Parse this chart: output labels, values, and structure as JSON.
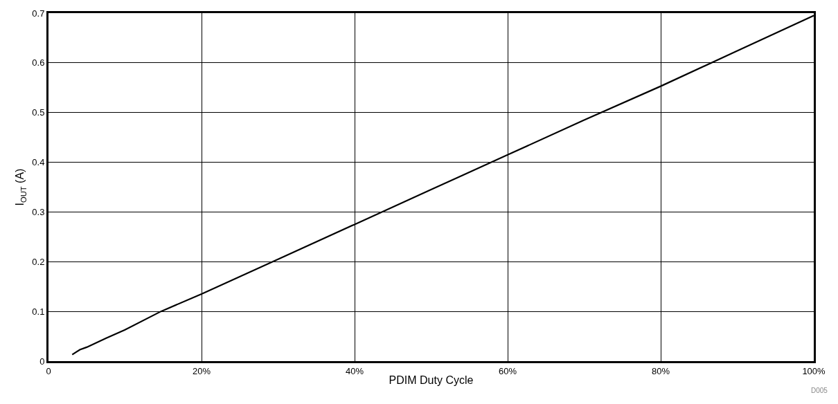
{
  "chart_data": {
    "type": "line",
    "xlabel": "PDIM Duty Cycle",
    "ylabel": "I$_{OUT}$ (A)",
    "x": [
      3.1,
      4.1,
      5,
      7.5,
      10,
      14.7,
      20,
      30,
      40,
      50,
      60,
      70,
      80,
      90,
      100
    ],
    "series": [
      {
        "color": "#000000",
        "values": [
          0.013,
          0.023,
          0.028,
          0.046,
          0.063,
          0.1,
          0.135,
          0.205,
          0.275,
          0.345,
          0.415,
          0.485,
          0.553,
          0.624,
          0.695
        ]
      }
    ],
    "xlim": [
      0,
      100
    ],
    "xticks": [
      0,
      {
        "value": 20,
        "label": "20%"
      },
      {
        "value": 40,
        "label": "40%"
      },
      {
        "value": 60,
        "label": "60%"
      },
      {
        "value": 80,
        "label": "80%"
      },
      {
        "value": 100,
        "label": "100%"
      }
    ],
    "ylim": [
      0,
      0.7
    ],
    "yticks": [
      0,
      0.1,
      0.2,
      0.3,
      0.4,
      0.5,
      0.6,
      0.7
    ],
    "grid": true,
    "marker": "none",
    "line_style": "solid",
    "annotations": [
      "D005"
    ]
  }
}
